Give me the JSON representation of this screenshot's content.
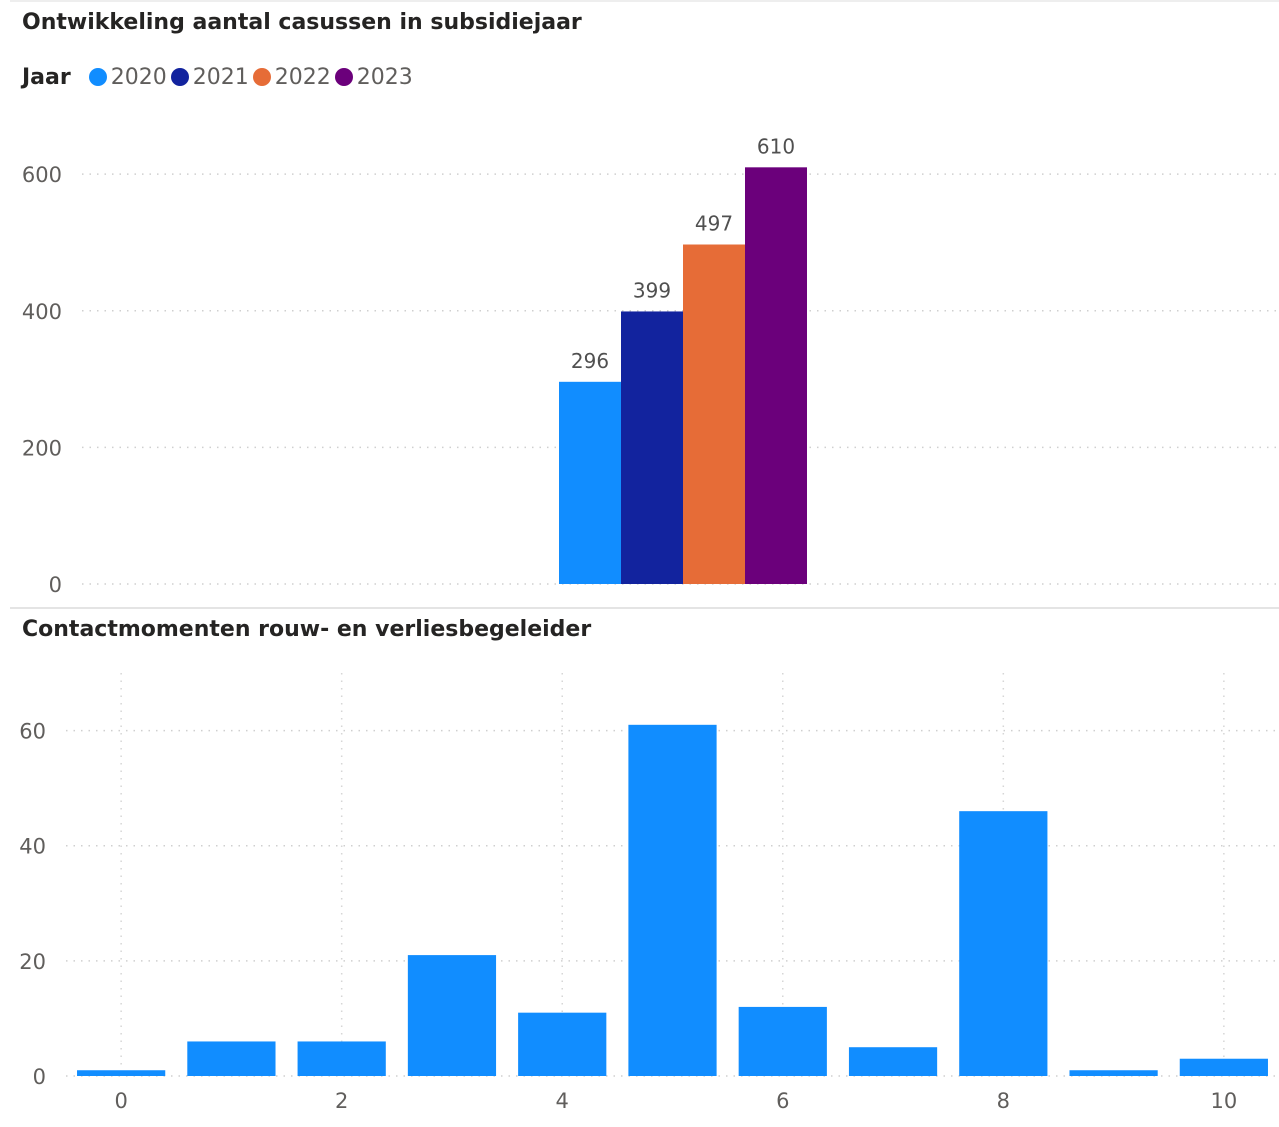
{
  "chart_data": [
    {
      "type": "bar",
      "title": "Ontwikkeling aantal casussen in subsidiejaar",
      "legend_title": "Jaar",
      "legend_position": "top-left",
      "grid": true,
      "ylim": [
        0,
        650
      ],
      "yticks": [
        0,
        200,
        400,
        600
      ],
      "categories": [
        ""
      ],
      "series": [
        {
          "name": "2020",
          "color": "#118DFF",
          "values": [
            296
          ]
        },
        {
          "name": "2021",
          "color": "#12239E",
          "values": [
            399
          ]
        },
        {
          "name": "2022",
          "color": "#E66C37",
          "values": [
            497
          ]
        },
        {
          "name": "2023",
          "color": "#6B007B",
          "values": [
            610
          ]
        }
      ],
      "data_labels": true
    },
    {
      "type": "bar",
      "title": "Contactmomenten rouw- en verliesbegeleider",
      "grid": true,
      "color": "#118DFF",
      "xlim": [
        -0.5,
        10.5
      ],
      "ylim": [
        0,
        70
      ],
      "xticks": [
        0,
        2,
        4,
        6,
        8,
        10
      ],
      "yticks": [
        0,
        20,
        40,
        60
      ],
      "x": [
        0,
        1,
        2,
        3,
        4,
        5,
        6,
        7,
        8,
        9,
        10
      ],
      "values": [
        1,
        6,
        6,
        21,
        11,
        61,
        12,
        5,
        46,
        1,
        3
      ]
    }
  ]
}
